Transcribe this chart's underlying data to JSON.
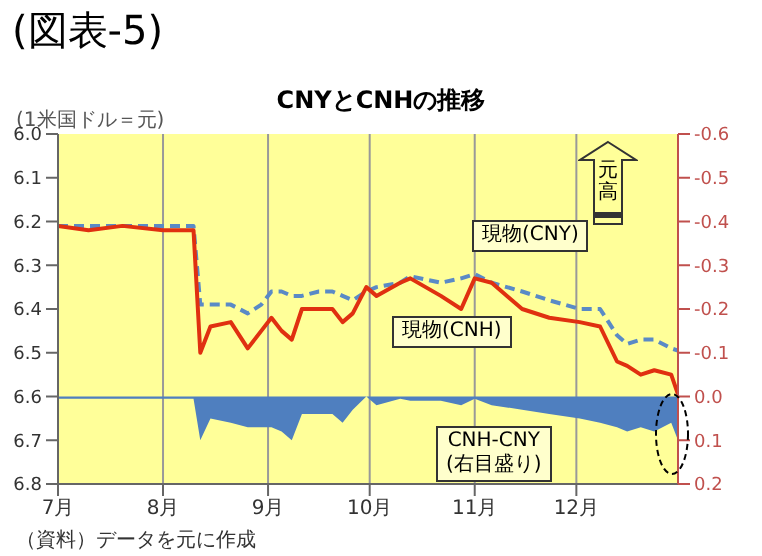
{
  "chart_data": {
    "type": "line",
    "title": "CNYとCNHの推移",
    "ylabel": "(1米国ドル＝元)",
    "annotations": [
      "(図表-5)",
      "元高",
      "（資料）データを元に作成"
    ],
    "x": [
      "--07-01",
      "--07-10",
      "--07-20",
      "--08-01",
      "--08-10",
      "--08-12",
      "--08-15",
      "--08-21",
      "--08-26",
      "--08-30",
      "--09-02",
      "--09-05",
      "--09-08",
      "--09-11",
      "--09-16",
      "--09-20",
      "--09-23",
      "--09-26",
      "--09-30",
      "--10-03",
      "--10-10",
      "--10-13",
      "--10-22",
      "--10-28",
      "--11-01",
      "--11-06",
      "--11-15",
      "--11-23",
      "--12-02",
      "--12-08",
      "--12-13",
      "--12-16",
      "--12-20",
      "--12-24",
      "--12-29",
      "--12-31"
    ],
    "series": [
      {
        "name": "現物(CNY)",
        "line_style": "dashed",
        "color": "#5a8ac6",
        "values": [
          6.21,
          6.21,
          6.21,
          6.21,
          6.21,
          6.39,
          6.39,
          6.39,
          6.41,
          6.39,
          6.36,
          6.36,
          6.37,
          6.37,
          6.36,
          6.36,
          6.37,
          6.38,
          6.36,
          6.35,
          6.34,
          6.325,
          6.34,
          6.33,
          6.32,
          6.34,
          6.36,
          6.38,
          6.4,
          6.4,
          6.46,
          6.48,
          6.47,
          6.47,
          6.49,
          6.495
        ]
      },
      {
        "name": "現物(CNH)",
        "line_style": "solid",
        "color": "#e03010",
        "values": [
          6.21,
          6.22,
          6.21,
          6.22,
          6.22,
          6.5,
          6.44,
          6.43,
          6.49,
          6.45,
          6.42,
          6.45,
          6.47,
          6.4,
          6.4,
          6.4,
          6.43,
          6.41,
          6.35,
          6.37,
          6.34,
          6.33,
          6.37,
          6.4,
          6.33,
          6.34,
          6.4,
          6.42,
          6.43,
          6.44,
          6.52,
          6.53,
          6.55,
          6.54,
          6.55,
          6.595
        ]
      },
      {
        "name": "CNH-CNY (右目盛り)",
        "type": "area",
        "axis": "y2",
        "color": "#4f7fbf",
        "values": [
          0.005,
          0.005,
          0.005,
          0.005,
          0.005,
          0.1,
          0.05,
          0.06,
          0.07,
          0.07,
          0.07,
          0.08,
          0.1,
          0.04,
          0.04,
          0.04,
          0.06,
          0.03,
          0,
          0.02,
          0.005,
          0.01,
          0.01,
          0.02,
          0.005,
          0.02,
          0.03,
          0.04,
          0.05,
          0.06,
          0.07,
          0.08,
          0.07,
          0.08,
          0.06,
          0.1
        ]
      }
    ],
    "xlim": [
      "--07-01",
      "--12-31"
    ],
    "xticks": [
      {
        "value": "--07-01",
        "label": "7月"
      },
      {
        "value": "--08-01",
        "label": "8月"
      },
      {
        "value": "--09-01",
        "label": "9月"
      },
      {
        "value": "--10-01",
        "label": "10月"
      },
      {
        "value": "--11-01",
        "label": "11月"
      },
      {
        "value": "--12-01",
        "label": "12月"
      }
    ],
    "ylim": [
      6.8,
      6.0
    ],
    "yticks": [
      {
        "value": 6,
        "label": "6.0"
      },
      6.1,
      6.2,
      6.3,
      6.4,
      6.5,
      6.6,
      6.7,
      6.8
    ],
    "y2lim": [
      0.2,
      -0.6
    ],
    "y2ticks": [
      0.2,
      0.1,
      {
        "value": 0,
        "label": "0.0"
      },
      -0.1,
      -0.2,
      -0.3,
      -0.4,
      -0.5,
      -0.6
    ],
    "grid": "x",
    "marker": "none",
    "legend": false
  }
}
